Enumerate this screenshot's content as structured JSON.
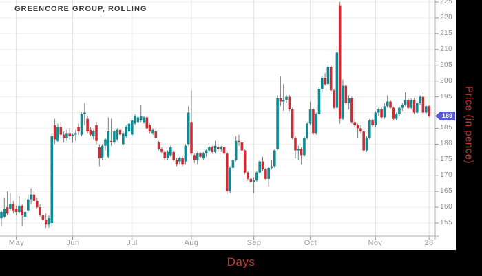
{
  "window_title": "GREENCORE GROUP, ROLLING",
  "y_axis": {
    "label": "Price (in pence)",
    "tick_labels": [
      "225",
      "220",
      "215",
      "210",
      "205",
      "200",
      "195",
      "185",
      "180",
      "175",
      "170",
      "165",
      "160",
      "155"
    ],
    "last_price_badge": "189"
  },
  "x_axis": {
    "label": "Days",
    "tick_labels": [
      "May",
      "Jun",
      "Jul",
      "Aug",
      "Sep",
      "Oct",
      "Nov",
      "28"
    ]
  },
  "colors": {
    "up_candle": "#0e8a93",
    "down_candle": "#cb2d34",
    "wick": "#7d7d7d",
    "grid_h": "#eeeeee",
    "grid_v": "#e2e2e2",
    "axis_line": "#b0b0b0",
    "tick_mark": "#999999",
    "y_tick_text": "#8b8b9b",
    "x_tick_text": "#9b9b9b",
    "title_text": "#3b3b3b",
    "badge_bg": "#5a5ad1",
    "badge_text": "#ffffff",
    "accent_red": "#c43a2f",
    "panel_bg": "#000000",
    "chart_bg": "#ffffff"
  },
  "chart_data": {
    "type": "candlestick",
    "title": "GREENCORE GROUP, ROLLING",
    "xlabel": "Days",
    "ylabel": "Price (in pence)",
    "y_ticks": [
      155,
      160,
      165,
      170,
      175,
      180,
      185,
      190,
      195,
      200,
      205,
      210,
      215,
      220,
      225
    ],
    "y_range": [
      150.5,
      225.5
    ],
    "grid": true,
    "last_close": 189,
    "x_ticks": [
      {
        "label": "May",
        "index": 5
      },
      {
        "label": "Jun",
        "index": 24
      },
      {
        "label": "Jul",
        "index": 44
      },
      {
        "label": "Aug",
        "index": 64
      },
      {
        "label": "Sep",
        "index": 85
      },
      {
        "label": "Oct",
        "index": 104
      },
      {
        "label": "Nov",
        "index": 126
      },
      {
        "label": "28",
        "index": 144
      }
    ],
    "ohlc": [
      [
        156.5,
        159,
        154,
        158.5
      ],
      [
        157,
        163,
        156.5,
        159.5
      ],
      [
        160,
        165,
        157.5,
        158
      ],
      [
        159.5,
        164.5,
        159,
        161
      ],
      [
        161,
        162,
        158,
        159
      ],
      [
        159.5,
        160.5,
        157.5,
        158.5
      ],
      [
        158.5,
        163.5,
        158,
        160.5
      ],
      [
        160.5,
        161,
        154,
        157.5
      ],
      [
        157,
        159,
        156,
        158.5
      ],
      [
        159,
        164,
        158.5,
        162.5
      ],
      [
        162.5,
        166,
        161,
        164
      ],
      [
        164,
        165,
        161.5,
        162
      ],
      [
        162,
        163,
        159.5,
        160
      ],
      [
        160,
        161,
        157,
        157.5
      ],
      [
        157.5,
        159.5,
        155.5,
        156
      ],
      [
        156,
        158,
        153.5,
        154.5
      ],
      [
        154.5,
        157.5,
        153.5,
        156.5
      ],
      [
        155,
        183.5,
        154,
        182.5
      ],
      [
        186,
        188,
        180,
        181.5
      ],
      [
        181,
        186.5,
        180.5,
        185.5
      ],
      [
        185.5,
        187,
        182,
        183
      ],
      [
        183,
        184,
        180.5,
        182
      ],
      [
        182,
        184.5,
        181,
        183.5
      ],
      [
        183.5,
        185,
        181.5,
        182.5
      ],
      [
        182.5,
        183.5,
        180.5,
        183
      ],
      [
        183,
        184.5,
        181,
        183.5
      ],
      [
        185.5,
        186.5,
        183,
        184
      ],
      [
        183,
        190,
        182.5,
        189.5
      ],
      [
        189.5,
        193,
        186,
        190
      ],
      [
        188,
        189,
        183.5,
        184
      ],
      [
        184.5,
        185.5,
        182.5,
        183
      ],
      [
        182.5,
        184.5,
        181.5,
        184
      ],
      [
        186,
        187,
        180,
        181
      ],
      [
        179,
        180,
        173,
        175.5
      ],
      [
        175.5,
        180,
        175,
        179.5
      ],
      [
        179.5,
        182,
        178,
        181.5
      ],
      [
        176,
        188.5,
        175.5,
        184
      ],
      [
        181,
        188,
        179.5,
        180.5
      ],
      [
        180.5,
        184.5,
        180,
        184
      ],
      [
        181.5,
        185,
        181,
        184.5
      ],
      [
        184.5,
        185,
        182.5,
        183
      ],
      [
        180,
        184,
        179.5,
        183.5
      ],
      [
        182.5,
        186,
        182,
        185.5
      ],
      [
        184,
        187,
        183.5,
        186.5
      ],
      [
        183,
        188,
        182.5,
        187.5
      ],
      [
        186.5,
        189.5,
        186,
        189
      ],
      [
        187,
        189,
        186.5,
        188.5
      ],
      [
        187.5,
        192.5,
        187,
        189
      ],
      [
        187,
        189,
        186.5,
        188.5
      ],
      [
        188.5,
        189,
        184.5,
        185
      ],
      [
        186,
        186.5,
        183.5,
        184
      ],
      [
        183.5,
        185,
        183,
        184.5
      ],
      [
        184,
        184.5,
        181.5,
        182
      ],
      [
        180.5,
        181,
        178,
        178.5
      ],
      [
        178.5,
        179,
        177,
        177.5
      ],
      [
        177.5,
        178,
        175,
        175.5
      ],
      [
        175.5,
        178,
        175,
        177.5
      ],
      [
        176.5,
        179.5,
        176,
        179
      ],
      [
        177.5,
        178,
        174.5,
        175
      ],
      [
        175,
        175.5,
        173,
        173.5
      ],
      [
        174.5,
        176,
        173.5,
        175.5
      ],
      [
        175.5,
        176,
        173,
        173.5
      ],
      [
        174.5,
        180,
        173.5,
        179.5
      ],
      [
        180,
        192,
        179.5,
        190
      ],
      [
        187,
        197,
        176.5,
        177
      ],
      [
        176.5,
        177,
        174,
        175
      ],
      [
        175,
        177.5,
        173.5,
        177
      ],
      [
        177,
        177.5,
        175.5,
        176
      ],
      [
        175.5,
        177.5,
        175,
        177
      ],
      [
        177,
        178.5,
        176,
        178
      ],
      [
        178,
        179.5,
        177.5,
        179
      ],
      [
        179,
        179.5,
        177,
        177.5
      ],
      [
        177.5,
        181,
        177,
        179.5
      ],
      [
        179,
        180,
        177.5,
        178.5
      ],
      [
        178.5,
        179.5,
        177.5,
        179
      ],
      [
        179,
        179.5,
        176.5,
        177
      ],
      [
        177,
        177.5,
        164,
        165
      ],
      [
        165,
        173,
        164.5,
        172.5
      ],
      [
        172.5,
        175.5,
        172,
        175
      ],
      [
        175,
        182.5,
        174.5,
        181
      ],
      [
        181,
        183,
        179.5,
        180.5
      ],
      [
        180.5,
        181,
        177.5,
        178
      ],
      [
        178,
        178.5,
        170.5,
        171
      ],
      [
        171,
        171.5,
        168.5,
        169
      ],
      [
        169,
        169.5,
        167.5,
        168
      ],
      [
        168,
        169.5,
        164.5,
        168.5
      ],
      [
        168.5,
        171.5,
        168,
        171
      ],
      [
        171,
        175,
        170.5,
        174.5
      ],
      [
        174.5,
        176,
        171.5,
        172
      ],
      [
        172,
        172.5,
        168.5,
        169
      ],
      [
        169,
        173,
        166.5,
        172.5
      ],
      [
        172.5,
        175,
        172,
        173
      ],
      [
        173,
        178.5,
        172.5,
        178
      ],
      [
        178.5,
        195.5,
        178,
        194.5
      ],
      [
        194.5,
        201.5,
        192,
        193.5
      ],
      [
        193.5,
        199,
        190.5,
        194
      ],
      [
        194,
        195.5,
        193,
        195
      ],
      [
        195,
        195.5,
        190.5,
        191
      ],
      [
        191,
        191.5,
        181.5,
        182
      ],
      [
        182,
        182.5,
        175.5,
        178
      ],
      [
        178,
        179.5,
        175,
        178.5
      ],
      [
        178.5,
        179,
        173.5,
        176.5
      ],
      [
        176.5,
        182.5,
        176,
        182
      ],
      [
        182,
        187,
        181.5,
        186.5
      ],
      [
        186.5,
        193.5,
        186,
        191
      ],
      [
        191,
        191.5,
        183,
        183.5
      ],
      [
        183.5,
        190,
        183,
        189.5
      ],
      [
        189.5,
        198,
        189,
        197.5
      ],
      [
        197.5,
        201.5,
        196.5,
        201
      ],
      [
        201,
        202.5,
        198.5,
        199
      ],
      [
        199,
        206,
        198.5,
        204.5
      ],
      [
        204.5,
        205,
        196,
        197
      ],
      [
        197,
        197.5,
        191,
        191.5
      ],
      [
        191.5,
        211,
        189,
        209
      ],
      [
        224,
        225,
        186.5,
        188
      ],
      [
        188,
        200.5,
        187.5,
        198.5
      ],
      [
        198.5,
        199,
        192.5,
        193
      ],
      [
        193,
        195.5,
        191,
        194.5
      ],
      [
        194.5,
        195,
        186.5,
        187
      ],
      [
        187,
        188,
        185.5,
        186
      ],
      [
        186,
        186.5,
        182,
        185
      ],
      [
        185,
        186,
        183.5,
        184
      ],
      [
        184,
        184.5,
        177.5,
        178
      ],
      [
        178,
        182.5,
        177.5,
        182
      ],
      [
        182,
        188,
        181.5,
        187.5
      ],
      [
        187.5,
        188,
        185.5,
        186
      ],
      [
        186,
        190.5,
        185.5,
        190
      ],
      [
        190,
        191.5,
        189,
        191
      ],
      [
        191,
        191.5,
        188,
        188.5
      ],
      [
        188.5,
        193,
        188,
        192
      ],
      [
        192,
        195.5,
        191.5,
        193.5
      ],
      [
        193.5,
        194,
        191,
        191.5
      ],
      [
        191.5,
        192,
        187.5,
        188
      ],
      [
        188,
        190,
        187.5,
        189.5
      ],
      [
        189.5,
        192,
        189,
        191.5
      ],
      [
        191.5,
        193,
        190.5,
        192.5
      ],
      [
        192.5,
        196.5,
        192,
        194
      ],
      [
        194,
        194.5,
        191,
        191.5
      ],
      [
        191.5,
        194.5,
        191,
        194
      ],
      [
        194,
        194.5,
        189.5,
        190
      ],
      [
        190,
        193.5,
        189.5,
        193
      ],
      [
        193,
        195.5,
        192.5,
        195
      ],
      [
        195,
        196.5,
        188.5,
        190
      ],
      [
        190,
        192.5,
        189.5,
        192
      ],
      [
        192,
        192.5,
        188.5,
        189
      ]
    ]
  }
}
